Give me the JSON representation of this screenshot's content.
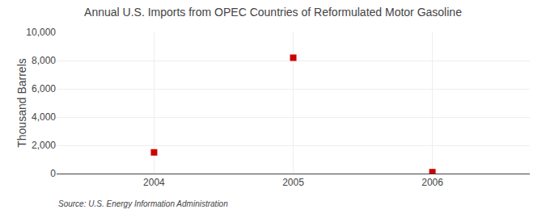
{
  "chart_data": {
    "type": "scatter",
    "title": "Annual U.S. Imports from OPEC Countries of Reformulated Motor Gasoline",
    "ylabel": "Thousand Barrels",
    "annotations": [
      "Source: U.S. Energy Information Administration"
    ],
    "x": [
      2004,
      2005,
      2006
    ],
    "values": [
      1500,
      8200,
      100
    ],
    "color": "#cc0000",
    "marker": "square",
    "xlim": [
      2003.3,
      2006.7
    ],
    "xticks": [
      2004,
      2005,
      2006
    ],
    "ylim": [
      0,
      10000
    ],
    "yticks": [
      0,
      {
        "value": 2000,
        "label": "2,000"
      },
      {
        "value": 4000,
        "label": "4,000"
      },
      {
        "value": 6000,
        "label": "6,000"
      },
      {
        "value": 8000,
        "label": "8,000"
      },
      {
        "value": 10000,
        "label": "10,000"
      }
    ],
    "grid": true
  }
}
